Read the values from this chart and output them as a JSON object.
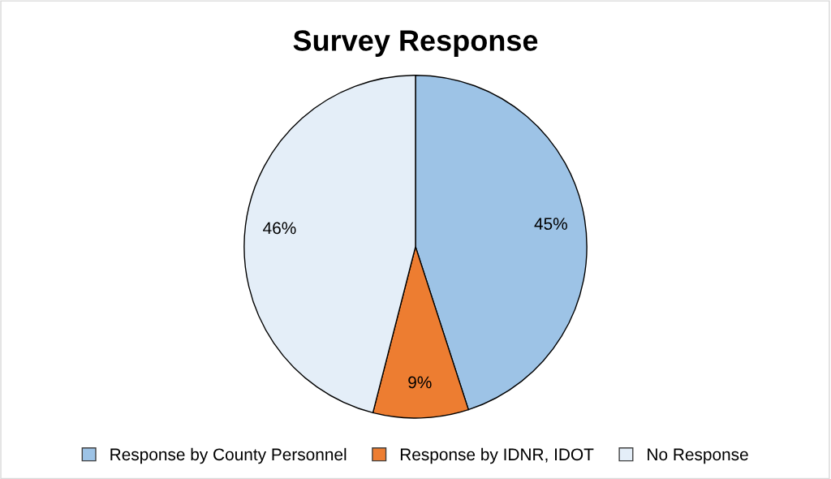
{
  "chart_data": {
    "type": "pie",
    "title": "Survey Response",
    "categories": [
      "Response by County Personnel",
      "Response by IDNR, IDOT",
      "No Response"
    ],
    "values": [
      45,
      9,
      46
    ],
    "colors": [
      "#9dc3e6",
      "#ed7d31",
      "#e4eef8"
    ],
    "value_labels": [
      "45%",
      "9%",
      "46%"
    ],
    "legend": "bottom"
  }
}
